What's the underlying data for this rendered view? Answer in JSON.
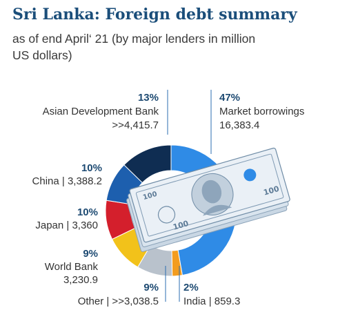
{
  "chart_data": {
    "type": "pie",
    "title": "Sri Lanka: Foreign debt summary",
    "subtitle": "as of end April‘ 21 (by major lenders in million US dollars)",
    "slices": [
      {
        "name": "Market borrowings",
        "value_text": "16,383.4",
        "percent_text": "47%",
        "value": 16383.4,
        "percent": 47,
        "color": "#2f8be6"
      },
      {
        "name": "India",
        "value_text": "859.3",
        "percent_text": "2%",
        "value": 859.3,
        "percent": 2,
        "color": "#f39c1f"
      },
      {
        "name": "Other",
        "value_text": ">>3,038.5",
        "percent_text": "9%",
        "value": 3038.5,
        "percent": 9,
        "color": "#b9c2cc"
      },
      {
        "name": "World Bank",
        "value_text": "3,230.9",
        "percent_text": "9%",
        "value": 3230.9,
        "percent": 9,
        "color": "#f2c21a"
      },
      {
        "name": "Japan",
        "value_text": "3,360",
        "percent_text": "10%",
        "value": 3360,
        "percent": 10,
        "color": "#d41f2c"
      },
      {
        "name": "China",
        "value_text": "3,388.2",
        "percent_text": "10%",
        "value": 3388.2,
        "percent": 10,
        "color": "#1d5fae"
      },
      {
        "name": "Asian Development Bank",
        "value_text": ">>4,415.7",
        "percent_text": "13%",
        "value": 4415.7,
        "percent": 13,
        "color": "#0f2d52"
      }
    ],
    "banknote_denomination": "100"
  },
  "labels": {
    "adb_pct": "13%",
    "adb_name": "Asian Development Bank",
    "adb_val": ">>4,415.7",
    "mkt_pct": "47%",
    "mkt_name": "Market borrowings",
    "mkt_val": "16,383.4",
    "china_pct": "10%",
    "china_text": "China | 3,388.2",
    "japan_pct": "10%",
    "japan_text": "Japan | 3,360",
    "wb_pct": "9%",
    "wb_name": "World Bank",
    "wb_val": "3,230.9",
    "other_pct": "9%",
    "other_text": "Other |  >>3,038.5",
    "india_pct": "2%",
    "india_text": "India | 859.3"
  }
}
